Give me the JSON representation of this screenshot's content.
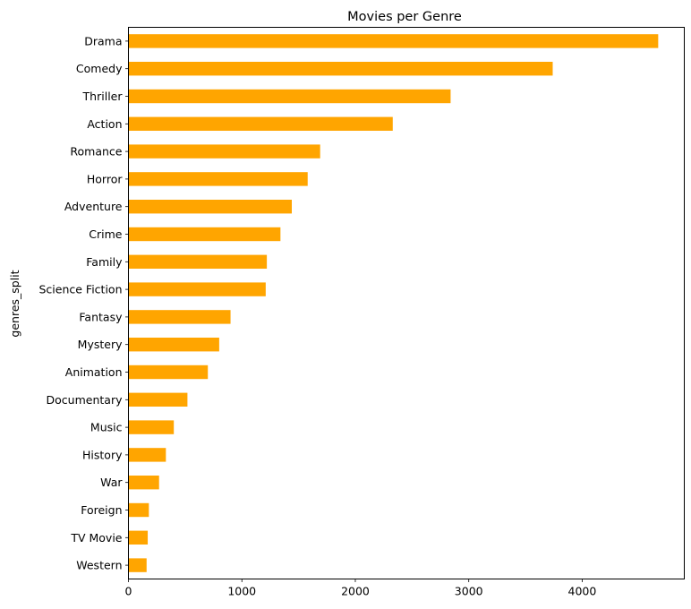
{
  "chart_data": {
    "type": "bar",
    "orientation": "horizontal",
    "title": "Movies per Genre",
    "xlabel": "",
    "ylabel": "genres_split",
    "xlim": [
      0,
      4900
    ],
    "xticks": [
      0,
      1000,
      2000,
      3000,
      4000
    ],
    "grid": false,
    "legend": "none",
    "bar_color": "#ffa500",
    "categories": [
      "Drama",
      "Comedy",
      "Thriller",
      "Action",
      "Romance",
      "Horror",
      "Adventure",
      "Crime",
      "Family",
      "Science Fiction",
      "Fantasy",
      "Mystery",
      "Animation",
      "Documentary",
      "Music",
      "History",
      "War",
      "Foreign",
      "TV Movie",
      "Western"
    ],
    "values": [
      4670,
      3740,
      2840,
      2330,
      1690,
      1580,
      1440,
      1340,
      1220,
      1210,
      900,
      800,
      700,
      520,
      400,
      330,
      270,
      180,
      170,
      160
    ]
  }
}
